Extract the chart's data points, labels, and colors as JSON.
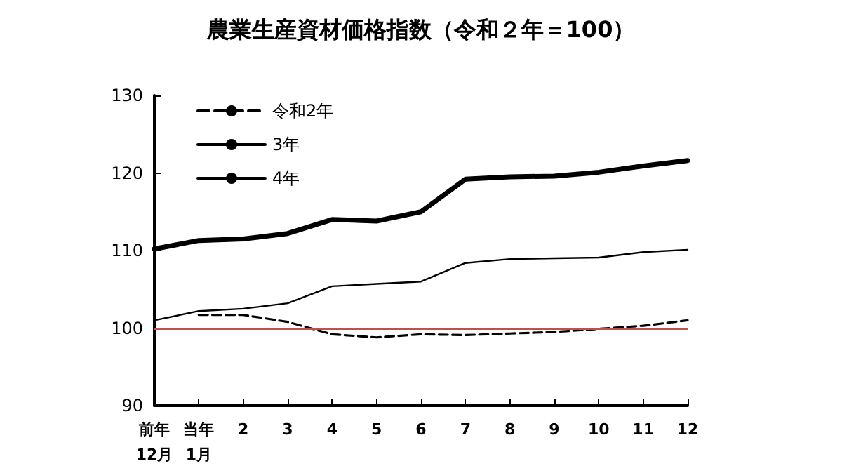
{
  "chart_data": {
    "type": "line",
    "title": "農業生産資材価格指数（令和２年＝100）",
    "categories": [
      "前年\n12月",
      "当年\n1月",
      "2",
      "3",
      "4",
      "5",
      "6",
      "7",
      "8",
      "9",
      "10",
      "11",
      "12"
    ],
    "series": [
      {
        "name": "令和2年",
        "color": "#000000",
        "line_style": "dashed",
        "values": [
          null,
          101.7,
          101.7,
          100.8,
          99.2,
          98.8,
          99.2,
          99.1,
          99.3,
          99.5,
          99.9,
          100.3,
          101.0
        ]
      },
      {
        "name": "3年",
        "color": "#000000",
        "line_style": "solid",
        "values": [
          101.0,
          102.2,
          102.5,
          103.2,
          105.4,
          105.7,
          106.0,
          108.4,
          108.9,
          109.0,
          109.1,
          109.8,
          110.1
        ]
      },
      {
        "name": "4年",
        "color": "#000000",
        "line_style": "solid",
        "values": [
          110.2,
          111.3,
          111.5,
          112.2,
          114.0,
          113.8,
          115.0,
          119.2,
          119.5,
          119.6,
          120.1,
          120.9,
          121.6
        ]
      }
    ],
    "ylim": [
      90,
      130
    ],
    "yticks": [
      90,
      100,
      110,
      120,
      130
    ],
    "ref_lines": [
      {
        "axis": "y",
        "value": 100,
        "color": "#c0504d"
      }
    ],
    "grid": false,
    "legend": "top left",
    "marker": "none"
  }
}
